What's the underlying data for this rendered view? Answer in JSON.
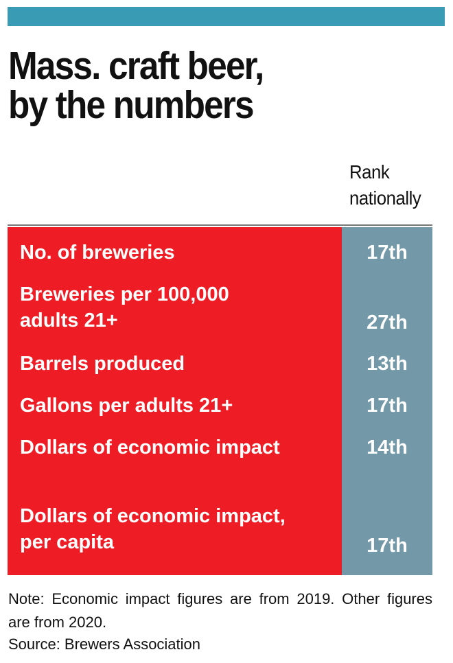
{
  "accent_color": "#3a9bb4",
  "label_bg_color": "#ee1c25",
  "rank_bg_color": "#7398a7",
  "title": "Mass. craft beer,\nby the numbers",
  "rank_header": "Rank\nnationally",
  "chart_data": {
    "type": "table",
    "title": "Mass. craft beer, by the numbers",
    "columns": [
      "",
      "Rank nationally"
    ],
    "rows": [
      {
        "label": "No. of breweries",
        "rank": "17th"
      },
      {
        "label": "Breweries per 100,000\nadults 21+",
        "rank": "27th"
      },
      {
        "label": "Barrels produced",
        "rank": "13th"
      },
      {
        "label": "Gallons per adults 21+",
        "rank": "17th"
      },
      {
        "label": "Dollars of economic impact",
        "rank": "14th"
      },
      {
        "label": "Dollars of economic impact,\nper capita",
        "rank": "17th"
      }
    ]
  },
  "note": "Note: Economic impact figures are from 2019. Other figures are from 2020.",
  "source": "Source: Brewers Association"
}
